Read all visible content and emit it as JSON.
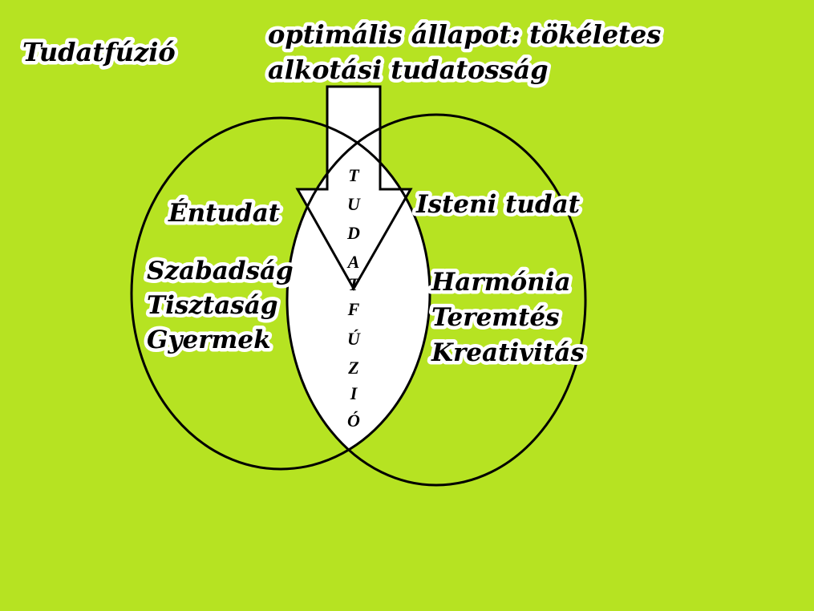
{
  "title": "Tudatfúzió",
  "top_label": {
    "line1": "optimális állapot: tökéletes",
    "line2": "alkotási tudatosság"
  },
  "left_circle": {
    "heading": "Éntudat",
    "items": [
      "Szabadság",
      "Tisztaság",
      "Gyermek"
    ]
  },
  "right_circle": {
    "heading": "Isteni tudat",
    "items": [
      "Harmónia",
      "Teremtés",
      "Kreativitás"
    ]
  },
  "center_letters": [
    "T",
    "U",
    "D",
    "A",
    "T",
    "F",
    "Ú",
    "Z",
    "I",
    "Ó"
  ],
  "colors": {
    "background": "#b6e322",
    "line": "#000000",
    "fill_white": "#ffffff"
  }
}
